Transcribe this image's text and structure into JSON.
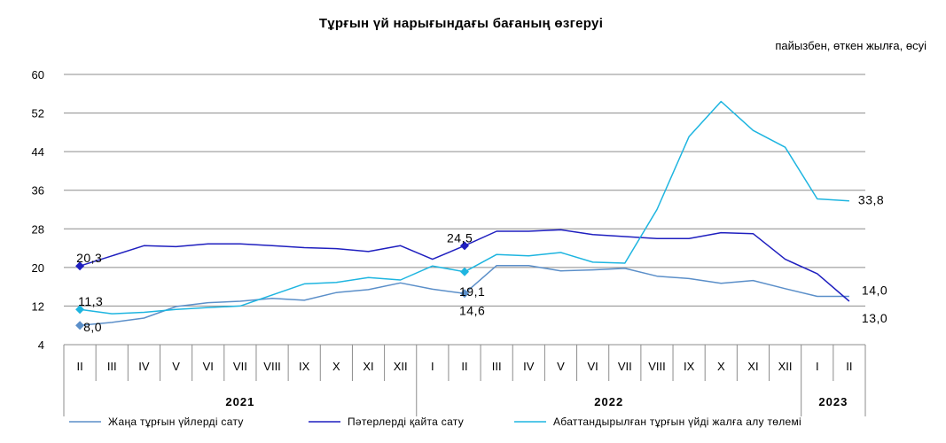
{
  "chart_data": {
    "type": "line",
    "title": "Тұрғын үй нарығындағы бағаның өзгеруі",
    "subtitle": "пайызбен, өткен жылға, өсуі",
    "ylim": [
      4,
      60
    ],
    "yticks": [
      "60",
      "52",
      "44",
      "36",
      "28",
      "20",
      "12",
      "4"
    ],
    "categories": [
      "II",
      "III",
      "IV",
      "V",
      "VI",
      "VII",
      "VIII",
      "IX",
      "X",
      "XI",
      "XII",
      "I",
      "II",
      "III",
      "IV",
      "V",
      "VI",
      "VII",
      "VIII",
      "IX",
      "X",
      "XI",
      "XII",
      "I",
      "II"
    ],
    "years": [
      {
        "label": "2021",
        "from": 0,
        "to": 10
      },
      {
        "label": "2022",
        "from": 11,
        "to": 22
      },
      {
        "label": "2023",
        "from": 23,
        "to": 24
      }
    ],
    "grid": true,
    "legend_position": "bottom",
    "series": [
      {
        "name": "Жаңа тұрғын үйлерді сату",
        "color": "#5b8fc9",
        "values": [
          8.0,
          8.6,
          9.5,
          11.9,
          12.7,
          13.0,
          13.6,
          13.2,
          14.8,
          15.4,
          16.8,
          15.5,
          14.6,
          20.4,
          20.4,
          19.3,
          19.5,
          19.8,
          18.2,
          17.7,
          16.7,
          17.3,
          15.6,
          14.0,
          14.0
        ],
        "labels": [
          {
            "index": 0,
            "text": "8,0"
          },
          {
            "index": 12,
            "text": "14,6"
          },
          {
            "index": 24,
            "text": "14,0"
          }
        ]
      },
      {
        "name": "Пәтерлерді қайта сату",
        "color": "#1f1fbf",
        "values": [
          20.3,
          22.4,
          24.5,
          24.3,
          24.9,
          24.9,
          24.5,
          24.1,
          23.9,
          23.3,
          24.5,
          21.7,
          24.5,
          27.5,
          27.5,
          27.8,
          26.8,
          26.4,
          26.0,
          26.0,
          27.2,
          27.0,
          21.7,
          18.7,
          13.0
        ],
        "labels": [
          {
            "index": 0,
            "text": "20,3"
          },
          {
            "index": 12,
            "text": "24,5"
          },
          {
            "index": 24,
            "text": "13,0"
          }
        ]
      },
      {
        "name": "Абаттандырылған тұрғын үйді жалға алу төлемі",
        "color": "#1eb5e0",
        "values": [
          11.3,
          10.4,
          10.7,
          11.3,
          11.7,
          12.0,
          14.3,
          16.6,
          16.9,
          17.9,
          17.4,
          20.3,
          19.1,
          22.7,
          22.4,
          23.1,
          21.1,
          20.9,
          32.0,
          47.1,
          54.4,
          48.4,
          44.9,
          34.2,
          33.8
        ],
        "labels": [
          {
            "index": 0,
            "text": "11,3"
          },
          {
            "index": 12,
            "text": "19,1"
          },
          {
            "index": 24,
            "text": "33,8"
          }
        ]
      }
    ]
  }
}
